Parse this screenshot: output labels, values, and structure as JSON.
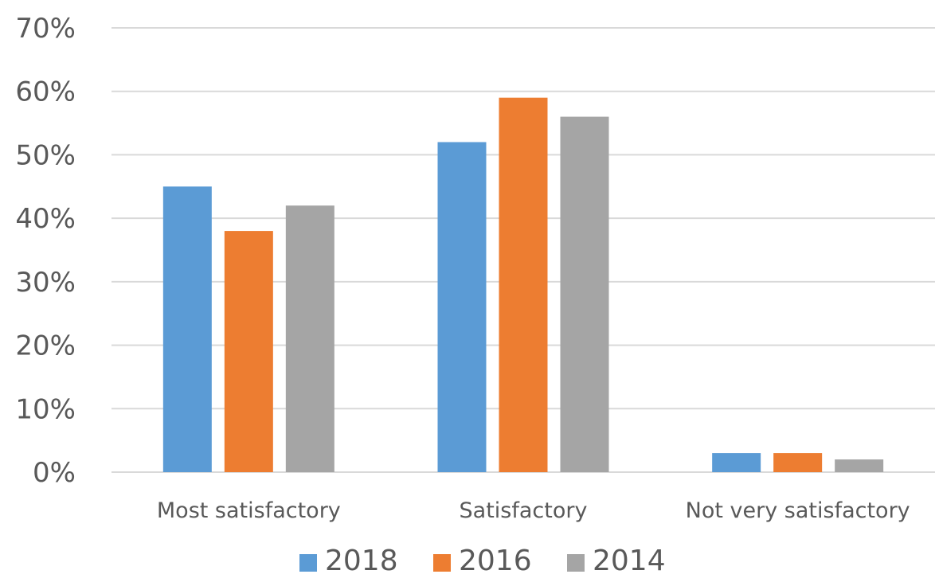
{
  "chart_data": {
    "type": "bar",
    "title": "",
    "xlabel": "",
    "ylabel": "",
    "categories": [
      "Most satisfactory",
      "Satisfactory",
      "Not very satisfactory"
    ],
    "series": [
      {
        "name": "2018",
        "color": "#5b9bd5",
        "values": [
          45,
          52,
          3
        ]
      },
      {
        "name": "2016",
        "color": "#ed7d31",
        "values": [
          38,
          59,
          3
        ]
      },
      {
        "name": "2014",
        "color": "#a5a5a5",
        "values": [
          42,
          56,
          2
        ]
      }
    ],
    "ylim": [
      0,
      70
    ],
    "yticks": [
      0,
      10,
      20,
      30,
      40,
      50,
      60,
      70
    ],
    "ytick_labels": [
      "0%",
      "10%",
      "20%",
      "30%",
      "40%",
      "50%",
      "60%",
      "70%"
    ],
    "grid": true,
    "legend_position": "bottom"
  }
}
